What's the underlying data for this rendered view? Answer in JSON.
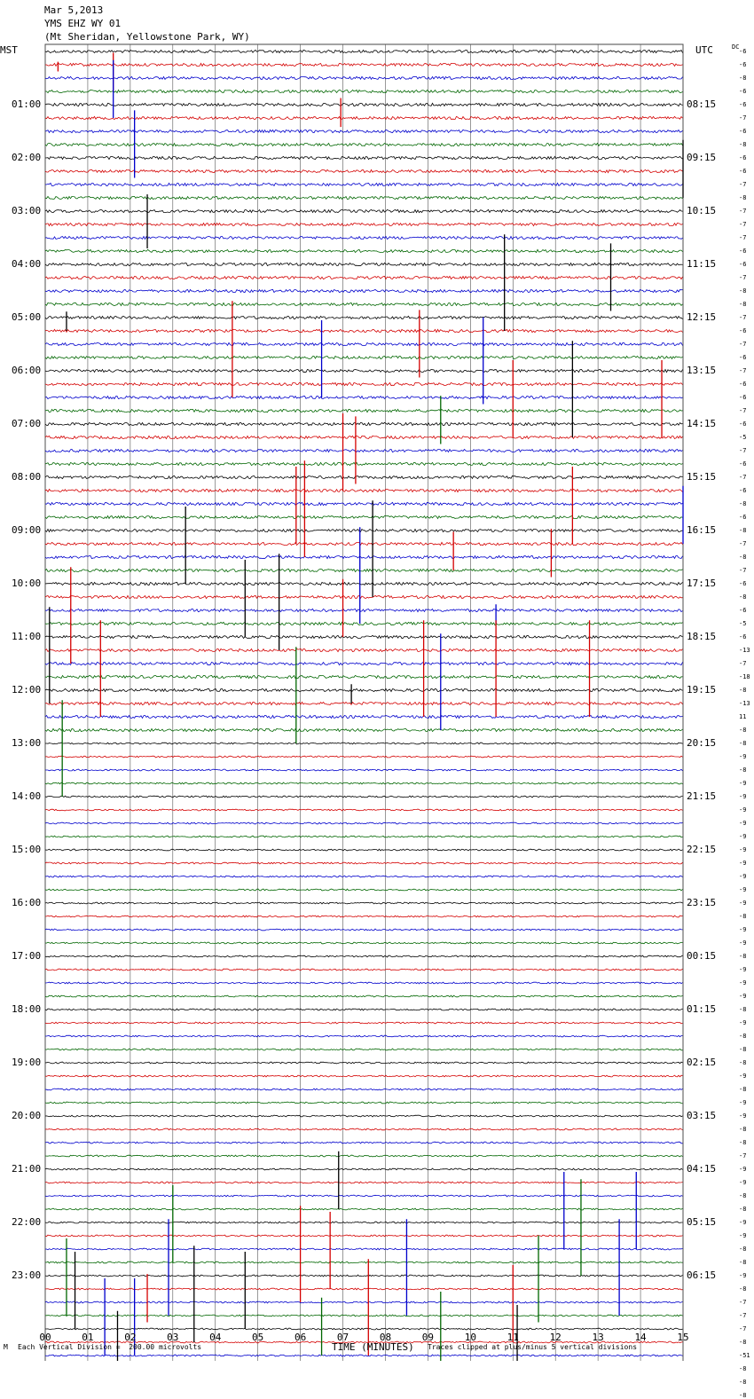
{
  "header": {
    "date": "Mar 5,2013",
    "station": "YMS EHZ WY 01",
    "location": "(Mt Sheridan, Yellowstone Park, WY)"
  },
  "labels": {
    "left_tz": "MST",
    "right_tz": "UTC",
    "dc": "DC",
    "xlabel": "TIME (MINUTES)",
    "footer_left": "Each Vertical Division =  200.00 microvolts",
    "footer_right": "Traces clipped at plus/minus 5 vertical divisions",
    "footer_mark": "M"
  },
  "colors": {
    "trace_cycle": [
      "#000000",
      "#d40000",
      "#0000cc",
      "#006600"
    ],
    "grid": "#555555"
  },
  "chart_data": {
    "type": "line",
    "title": "YMS EHZ WY 01",
    "xlabel": "TIME (MINUTES)",
    "xlim": [
      0,
      15
    ],
    "x_ticks": [
      "00",
      "01",
      "02",
      "03",
      "04",
      "05",
      "06",
      "07",
      "08",
      "09",
      "10",
      "11",
      "12",
      "13",
      "14",
      "15"
    ],
    "left_ticks": [
      "01:00",
      "02:00",
      "03:00",
      "04:00",
      "05:00",
      "06:00",
      "07:00",
      "08:00",
      "09:00",
      "10:00",
      "11:00",
      "12:00",
      "13:00",
      "14:00",
      "15:00",
      "16:00",
      "17:00",
      "18:00",
      "19:00",
      "20:00",
      "21:00",
      "22:00",
      "23:00"
    ],
    "right_ticks": [
      "08:15",
      "09:15",
      "10:15",
      "11:15",
      "12:15",
      "13:15",
      "14:15",
      "15:15",
      "16:15",
      "17:15",
      "18:15",
      "19:15",
      "20:15",
      "21:15",
      "22:15",
      "23:15",
      "00:15",
      "01:15",
      "02:15",
      "03:15",
      "04:15",
      "05:15",
      "06:15"
    ],
    "dc_offsets": [
      "-6",
      "-6",
      "-8",
      "-6",
      "-6",
      "-7",
      "-6",
      "-8",
      "-6",
      "-6",
      "-7",
      "-8",
      "-7",
      "-7",
      "-7",
      "-6",
      "-6",
      "-7",
      "-8",
      "-8",
      "-7",
      "-6",
      "-7",
      "-6",
      "-7",
      "-6",
      "-6",
      "-7",
      "-6",
      "-5",
      "-7",
      "-6",
      "-7",
      "-6",
      "-8",
      "-6",
      "-8",
      "-7",
      "-8",
      "-7",
      "-6",
      "-8",
      "-6",
      "-5",
      "-6",
      "-13",
      "-7",
      "-18",
      "-8",
      "-13",
      "11",
      "-8",
      "-8",
      "-9",
      "-8",
      "-9",
      "-9",
      "-9",
      "-9",
      "-9",
      "-9",
      "-9",
      "-9",
      "-9",
      "-9",
      "-8",
      "-9",
      "-9",
      "-8",
      "-9",
      "-9",
      "-9",
      "-8",
      "-9",
      "-8",
      "-8",
      "-8",
      "-9",
      "-8",
      "-9",
      "-9",
      "-8",
      "-8",
      "-7",
      "-9",
      "-9",
      "-8",
      "-8",
      "-9",
      "-9",
      "-8",
      "-8",
      "-9",
      "-8",
      "-7",
      "-7",
      "-7",
      "-8",
      "-51",
      "-8",
      "-8",
      "-8"
    ],
    "spikes": [
      [
        1,
        0.3,
        0.5
      ],
      [
        1,
        1.6,
        2.0
      ],
      [
        2,
        1.6,
        3.0
      ],
      [
        6,
        2.1,
        3.5
      ],
      [
        8,
        15.0,
        3.0
      ],
      [
        12,
        2.4,
        2.8
      ],
      [
        16,
        13.3,
        3.5
      ],
      [
        16,
        10.8,
        5.0
      ],
      [
        24,
        12.4,
        5.0
      ],
      [
        20,
        0.5,
        1.0
      ],
      [
        5,
        6.95,
        -1.5
      ],
      [
        21,
        4.4,
        5.0
      ],
      [
        21,
        8.8,
        3.5
      ],
      [
        22,
        10.3,
        4.5
      ],
      [
        22,
        6.5,
        4.0
      ],
      [
        25,
        11.0,
        4.0
      ],
      [
        25,
        14.5,
        4.0
      ],
      [
        27,
        9.3,
        2.5
      ],
      [
        29,
        7.3,
        3.5
      ],
      [
        29,
        7.0,
        4.0
      ],
      [
        33,
        5.9,
        4.0
      ],
      [
        33,
        6.1,
        5.0
      ],
      [
        33,
        12.4,
        4.0
      ],
      [
        34,
        15.0,
        3.0
      ],
      [
        36,
        3.3,
        4.0
      ],
      [
        36,
        7.7,
        5.0
      ],
      [
        37,
        9.6,
        2.0
      ],
      [
        37,
        11.9,
        2.5
      ],
      [
        38,
        7.4,
        5.0
      ],
      [
        40,
        4.7,
        4.0
      ],
      [
        40,
        5.5,
        5.0
      ],
      [
        41,
        0.6,
        5.0
      ],
      [
        41,
        7.0,
        3.0
      ],
      [
        42,
        10.6,
        1.0
      ],
      [
        44,
        0.1,
        5.0
      ],
      [
        45,
        1.3,
        5.0
      ],
      [
        45,
        8.9,
        5.0
      ],
      [
        45,
        10.6,
        5.0
      ],
      [
        45,
        12.8,
        5.0
      ],
      [
        46,
        9.3,
        5.0
      ],
      [
        47,
        5.9,
        5.0
      ],
      [
        48,
        7.2,
        1.0
      ],
      [
        51,
        0.4,
        5.0
      ],
      [
        84,
        6.9,
        3.0
      ],
      [
        86,
        12.2,
        4.0
      ],
      [
        86,
        13.9,
        4.0
      ],
      [
        87,
        3.0,
        4.0
      ],
      [
        87,
        12.6,
        5.0
      ],
      [
        89,
        6.7,
        4.0
      ],
      [
        89,
        6.0,
        5.0
      ],
      [
        90,
        2.9,
        5.0
      ],
      [
        90,
        8.5,
        5.0
      ],
      [
        90,
        13.5,
        5.0
      ],
      [
        91,
        0.5,
        4.0
      ],
      [
        91,
        11.6,
        4.5
      ],
      [
        92,
        0.7,
        4.0
      ],
      [
        92,
        3.5,
        5.0
      ],
      [
        92,
        4.7,
        4.0
      ],
      [
        93,
        2.4,
        2.5
      ],
      [
        93,
        7.6,
        5.0
      ],
      [
        93,
        11.0,
        4.0
      ],
      [
        94,
        1.4,
        4.0
      ],
      [
        94,
        2.1,
        4.0
      ],
      [
        95,
        6.5,
        3.0
      ],
      [
        95,
        9.3,
        4.0
      ],
      [
        96,
        1.7,
        3.0
      ],
      [
        96,
        11.1,
        4.0
      ]
    ]
  }
}
